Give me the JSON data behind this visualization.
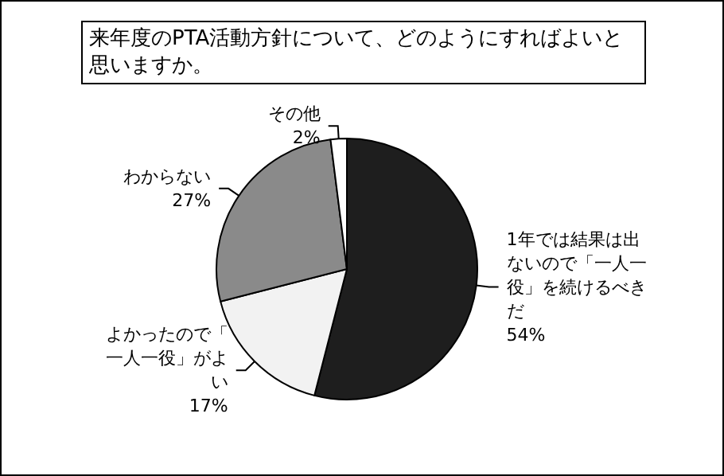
{
  "chart_data": {
    "type": "pie",
    "title": "来年度のPTA活動方針について、どのようにすればよいと思いますか。",
    "categories": [
      "1年では結果は出ないので「一人一役」を続けるべきだ",
      "よかったので「一人一役」がよい",
      "わからない",
      "その他"
    ],
    "values": [
      54,
      17,
      27,
      2
    ],
    "value_labels": [
      "54%",
      "17%",
      "27%",
      "2%"
    ],
    "colors": [
      "#1e1e1e",
      "#f2f2f2",
      "#8a8a8a",
      "#ffffff"
    ],
    "legend": false
  }
}
